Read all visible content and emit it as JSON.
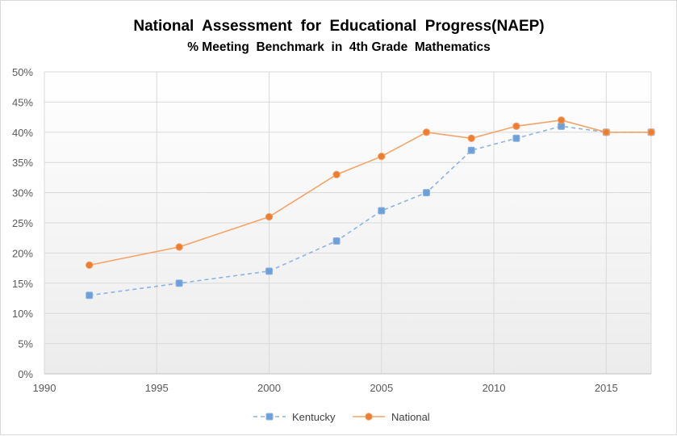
{
  "chart_data": {
    "type": "line",
    "title": "National  Assessment  for  Educational  Progress(NAEP)",
    "subtitle": "% Meeting  Benchmark  in  4th Grade  Mathematics",
    "xlabel": "",
    "ylabel": "",
    "xlim": [
      1990,
      2017
    ],
    "ylim": [
      0,
      50
    ],
    "x_ticks": [
      1990,
      1995,
      2000,
      2005,
      2010,
      2015
    ],
    "y_ticks": [
      0,
      5,
      10,
      15,
      20,
      25,
      30,
      35,
      40,
      45,
      50
    ],
    "y_tick_suffix": "%",
    "grid": true,
    "legend_position": "bottom",
    "series": [
      {
        "name": "Kentucky",
        "color": "#8db3e2",
        "marker_color": "#6f9fd8",
        "line_style": "dashed",
        "x": [
          1992,
          1996,
          2000,
          2003,
          2005,
          2007,
          2009,
          2011,
          2013,
          2015,
          2017
        ],
        "y": [
          13,
          15,
          17,
          22,
          27,
          30,
          37,
          39,
          41,
          40,
          40
        ]
      },
      {
        "name": "National",
        "color": "#f4a46a",
        "marker_color": "#ed7d31",
        "line_style": "solid",
        "x": [
          1992,
          1996,
          2000,
          2003,
          2005,
          2007,
          2009,
          2011,
          2013,
          2015,
          2017
        ],
        "y": [
          18,
          21,
          26,
          33,
          36,
          40,
          39,
          41,
          42,
          40,
          40
        ]
      }
    ]
  }
}
